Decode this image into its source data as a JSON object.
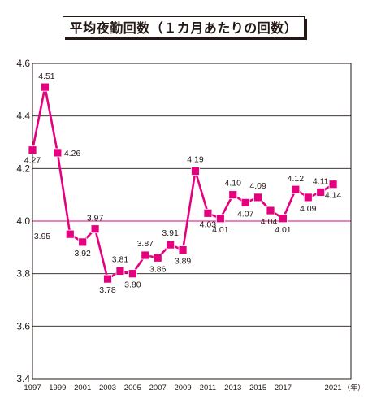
{
  "chart_data": {
    "type": "line",
    "title": "平均夜勤回数（１カ月あたりの回数）",
    "x": [
      1997,
      1998,
      1999,
      2000,
      2001,
      2002,
      2003,
      2004,
      2005,
      2006,
      2007,
      2008,
      2009,
      2010,
      2011,
      2012,
      2013,
      2014,
      2015,
      2016,
      2017,
      2018,
      2019,
      2020,
      2021
    ],
    "series": [
      {
        "values": [
          4.27,
          4.51,
          4.26,
          3.95,
          3.92,
          3.97,
          3.78,
          3.81,
          3.8,
          3.87,
          3.86,
          3.91,
          3.89,
          4.19,
          4.03,
          4.01,
          4.1,
          4.07,
          4.09,
          4.04,
          4.01,
          4.12,
          4.09,
          4.11,
          4.14
        ]
      }
    ],
    "data_labels": [
      "4.27",
      "4.51",
      "4.26",
      "3.95",
      "3.92",
      "3.97",
      "3.78",
      "3.81",
      "3.80",
      "3.87",
      "3.86",
      "3.91",
      "3.89",
      "4.19",
      "4.03",
      "4.01",
      "4.10",
      "4.07",
      "4.09",
      "4.04",
      "4.01",
      "4.12",
      "4.09",
      "4.11",
      "4.14"
    ],
    "x_tick_labels": [
      "1997",
      "1999",
      "2001",
      "2003",
      "2005",
      "2007",
      "2009",
      "2011",
      "2013",
      "2015",
      "2017",
      "2021"
    ],
    "x_tick_years": [
      1997,
      1999,
      2001,
      2003,
      2005,
      2007,
      2009,
      2011,
      2013,
      2015,
      2017,
      2021
    ],
    "x_unit": "（年）",
    "y_tick_labels": [
      "3.4",
      "3.6",
      "3.8",
      "4.0",
      "4.2",
      "4.4",
      "4.6"
    ],
    "y_ticks": [
      3.4,
      3.6,
      3.8,
      4.0,
      4.2,
      4.4,
      4.6
    ],
    "ylim": [
      3.4,
      4.6
    ],
    "reference_line": 4.0,
    "grid": true,
    "colors": {
      "series": "#e4007f",
      "reference": "#e4007f",
      "grid": "#231815"
    }
  }
}
